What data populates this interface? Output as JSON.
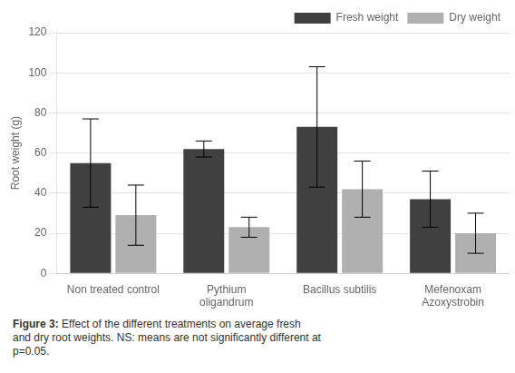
{
  "chart_data": {
    "type": "bar",
    "categories": [
      "Non treated control",
      "Pythium\noligandrum",
      "Bacillus subtilis",
      "Mefenoxam\nAzoxystrobin"
    ],
    "series": [
      {
        "name": "Fresh weight",
        "color": "#404040",
        "values": [
          55,
          62,
          73,
          37
        ],
        "errors": [
          22,
          4,
          30,
          14
        ]
      },
      {
        "name": "Dry weight",
        "color": "#b0b0b0",
        "values": [
          29,
          23,
          42,
          20
        ],
        "errors": [
          15,
          5,
          14,
          10
        ]
      }
    ],
    "ylabel": "Root weight (g)",
    "ylim": [
      0,
      120
    ],
    "yticks": [
      0,
      20,
      40,
      60,
      80,
      100,
      120
    ],
    "grid": true,
    "legend": "upper right",
    "annotations": [
      {
        "bold": "Figure 3:",
        "text": " Effect of the different treatments on average fresh\nand dry root weights. NS: means are not significantly different at\np=0.05."
      }
    ]
  }
}
